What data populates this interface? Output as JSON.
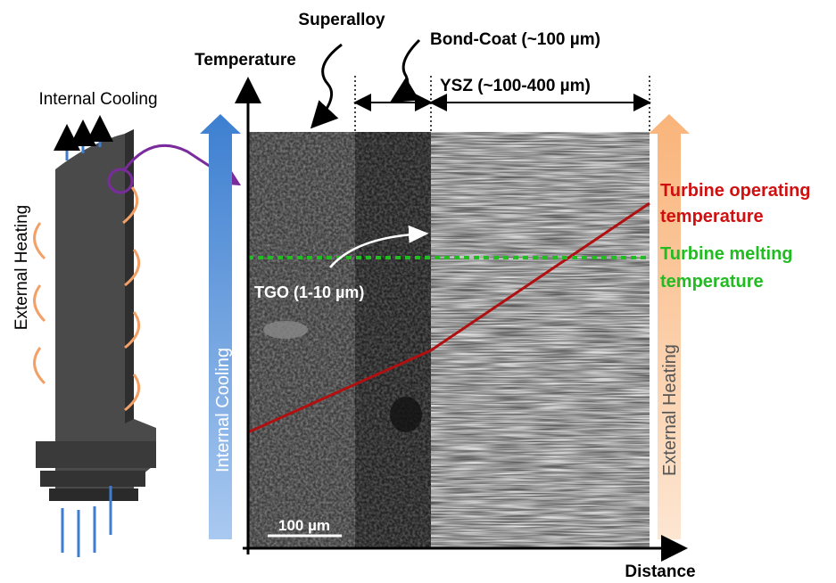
{
  "labels": {
    "superalloy": "Superalloy",
    "bond_coat": "Bond-Coat (~100 µm)",
    "ysz": "YSZ (~100-400 µm)",
    "temperature_axis": "Temperature",
    "distance_axis": "Distance",
    "internal_cooling_top": "Internal Cooling",
    "external_heating_side": "External Heating",
    "internal_cooling_bar": "Internal Cooling",
    "external_heating_bar": "External Heating",
    "tgo": "TGO (1-10 µm)",
    "operating_temperature": [
      "Turbine operating",
      "temperature"
    ],
    "melting_temperature": [
      "Turbine melting",
      "temperature"
    ],
    "scale_bar": "100 µm"
  }
}
